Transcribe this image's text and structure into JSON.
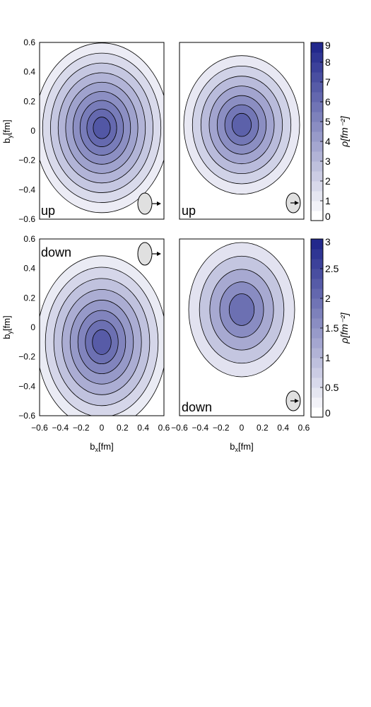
{
  "chart_data": [
    {
      "type": "heatmap",
      "label": "up",
      "ylabel": "b_y [fm]",
      "xlabel": "",
      "xlim": [
        -0.6,
        0.6
      ],
      "ylim": [
        -0.6,
        0.6
      ],
      "center": [
        0.0,
        0.02
      ],
      "colorbar": "top",
      "arrow": "outside",
      "levels": [
        0.5,
        1,
        2,
        3,
        4,
        5,
        6,
        7,
        8
      ]
    },
    {
      "type": "heatmap",
      "label": "up",
      "ylabel": "",
      "xlabel": "",
      "xlim": [
        -0.6,
        0.6
      ],
      "ylim": [
        -0.6,
        0.6
      ],
      "center": [
        0.0,
        0.04
      ],
      "colorbar": "top",
      "arrow": "inside",
      "levels": [
        0.5,
        1,
        2,
        3,
        4,
        5,
        6
      ]
    },
    {
      "type": "heatmap",
      "label": "down",
      "ylabel": "b_y [fm]",
      "xlabel": "b_x [fm]",
      "xlim": [
        -0.6,
        0.6
      ],
      "ylim": [
        -0.6,
        0.6
      ],
      "center": [
        0.0,
        -0.1
      ],
      "colorbar": "bottom",
      "arrow": "outside",
      "levels": [
        0.3,
        0.6,
        0.9,
        1.2,
        1.5,
        1.8,
        2.1,
        2.4
      ]
    },
    {
      "type": "heatmap",
      "label": "down",
      "ylabel": "",
      "xlabel": "b_x [fm]",
      "xlim": [
        -0.6,
        0.6
      ],
      "ylim": [
        -0.6,
        0.6
      ],
      "center": [
        0.0,
        0.12
      ],
      "colorbar": "bottom",
      "arrow": "inside",
      "levels": [
        0.25,
        0.5,
        0.75,
        1.0,
        1.25
      ]
    }
  ],
  "colorbars": {
    "top": {
      "ticks": [
        "0",
        "1",
        "2",
        "3",
        "4",
        "5",
        "6",
        "7",
        "8",
        "9"
      ],
      "max": 9,
      "unit": "ρ[fm⁻²]"
    },
    "bottom": {
      "ticks": [
        "0",
        "0.5",
        "1",
        "1.5",
        "2",
        "2.5",
        "3"
      ],
      "max": 3,
      "unit": "ρ[fm⁻²]"
    }
  },
  "axes": {
    "xticks": [
      "-0.6",
      "-0.4",
      "-0.2",
      "0",
      "0.2",
      "0.4",
      "0.6"
    ],
    "yticks": [
      "0.6",
      "0.4",
      "0.2",
      "0",
      "-0.2",
      "-0.4",
      "-0.6"
    ],
    "ylabel_main": "b",
    "ylabel_sub": "y",
    "xlabel_main": "b",
    "xlabel_sub": "x",
    "unit": "[fm]"
  },
  "colors": {
    "low": "#ffffff",
    "high": "#1a237e",
    "contour": "#000000",
    "spin_circle": "#e0e0e0"
  }
}
